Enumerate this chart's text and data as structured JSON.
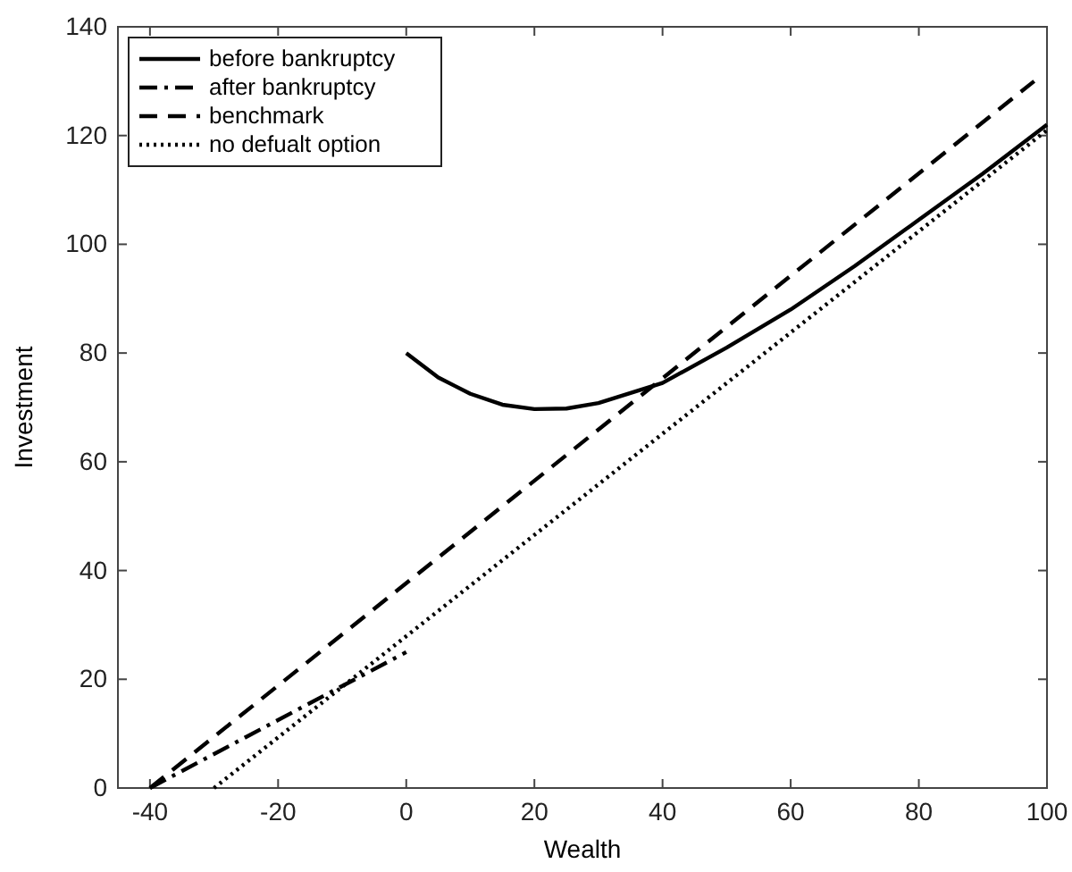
{
  "chart_data": {
    "type": "line",
    "xlabel": "Wealth",
    "ylabel": "Investment",
    "xlim": [
      -45,
      100
    ],
    "ylim": [
      0,
      140
    ],
    "xticks": [
      -40,
      -20,
      0,
      20,
      40,
      60,
      80,
      100
    ],
    "yticks": [
      0,
      20,
      40,
      60,
      80,
      100,
      120,
      140
    ],
    "grid": false,
    "legend": "top left",
    "series": [
      {
        "name": "before bankruptcy",
        "color": "#000000",
        "line_style": "solid",
        "x": [
          0,
          5,
          10,
          15,
          20,
          25,
          30,
          40,
          50,
          60,
          70,
          80,
          90,
          100
        ],
        "values": [
          80,
          75.5,
          72.5,
          70.5,
          69.7,
          69.8,
          70.8,
          74.5,
          81,
          88,
          96,
          104.5,
          113,
          122
        ]
      },
      {
        "name": "after bankruptcy",
        "color": "#000000",
        "line_style": "dashdot",
        "x": [
          -40,
          0
        ],
        "values": [
          0,
          25
        ]
      },
      {
        "name": "benchmark",
        "color": "#000000",
        "line_style": "dashed",
        "x": [
          -40,
          98
        ],
        "values": [
          0,
          130
        ]
      },
      {
        "name": "no defualt option",
        "color": "#000000",
        "line_style": "dotted",
        "x": [
          -30,
          100
        ],
        "values": [
          0,
          121
        ]
      }
    ]
  }
}
